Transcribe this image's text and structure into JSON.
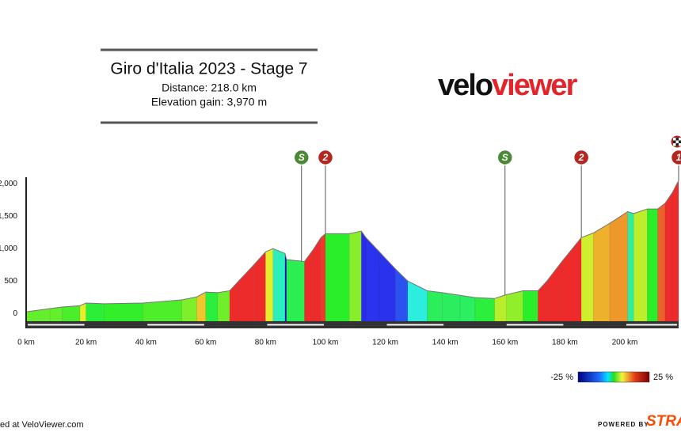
{
  "chart_data": {
    "type": "area",
    "title": "Giro d'Italia 2023 - Stage 7",
    "subtitle": [
      "Distance: 218.0 km",
      "Elevation gain: 3,970 m"
    ],
    "logo": [
      "velo",
      "viewer"
    ],
    "x": [
      0,
      8,
      12,
      18,
      20,
      26,
      39,
      52,
      57,
      60,
      64,
      68,
      71,
      76,
      80,
      82.5,
      86.5,
      87,
      93,
      96,
      98.5,
      100,
      108,
      112,
      113.5,
      118,
      123.5,
      127.5,
      134,
      139,
      145,
      150,
      156.5,
      160.5,
      166,
      171,
      174,
      179,
      185.5,
      189.5,
      195,
      201,
      203,
      207.5,
      211,
      213.5,
      216,
      218
    ],
    "values": [
      25,
      75,
      100,
      120,
      160,
      150,
      160,
      210,
      255,
      330,
      320,
      350,
      500,
      745,
      950,
      1000,
      925,
      830,
      800,
      990,
      1170,
      1230,
      1230,
      1270,
      1170,
      950,
      680,
      500,
      350,
      320,
      280,
      245,
      230,
      290,
      350,
      350,
      500,
      800,
      1170,
      1240,
      1390,
      1570,
      1540,
      1610,
      1610,
      1700,
      1870,
      2050
    ],
    "xlim": [
      0,
      218
    ],
    "xticks": [
      {
        "value": 0,
        "label": "0 km"
      },
      {
        "value": 20,
        "label": "20 km"
      },
      {
        "value": 40,
        "label": "40 km"
      },
      {
        "value": 60,
        "label": "60 km"
      },
      {
        "value": 80,
        "label": "80 km"
      },
      {
        "value": 100,
        "label": "100 km"
      },
      {
        "value": 120,
        "label": "120 km"
      },
      {
        "value": 140,
        "label": "140 km"
      },
      {
        "value": 160,
        "label": "160 km"
      },
      {
        "value": 180,
        "label": "180 km"
      },
      {
        "value": 200,
        "label": "200 km"
      }
    ],
    "ylim": [
      -120,
      2100
    ],
    "yticks": [
      0,
      500,
      {
        "value": 1000,
        "label": "1,000"
      },
      {
        "value": 1500,
        "label": "1,500"
      },
      {
        "value": 2000,
        "label": "2,000"
      }
    ],
    "markers": [
      {
        "x": 92,
        "label": "S",
        "color": "#4a8a35"
      },
      {
        "x": 100,
        "label": "2",
        "color": "#b5261e"
      },
      {
        "x": 160,
        "label": "S",
        "color": "#4a8a35"
      },
      {
        "x": 185.5,
        "label": "2",
        "color": "#b5261e"
      },
      {
        "x": 218,
        "label": "1",
        "color": "#b5261e"
      }
    ],
    "color_scale": [
      {
        "value": -25,
        "label": "-25 %"
      },
      {
        "value": 25,
        "label": "25 %"
      }
    ],
    "footer": [
      "ed at VeloViewer.com",
      "POWERED BY",
      "STRA"
    ]
  }
}
